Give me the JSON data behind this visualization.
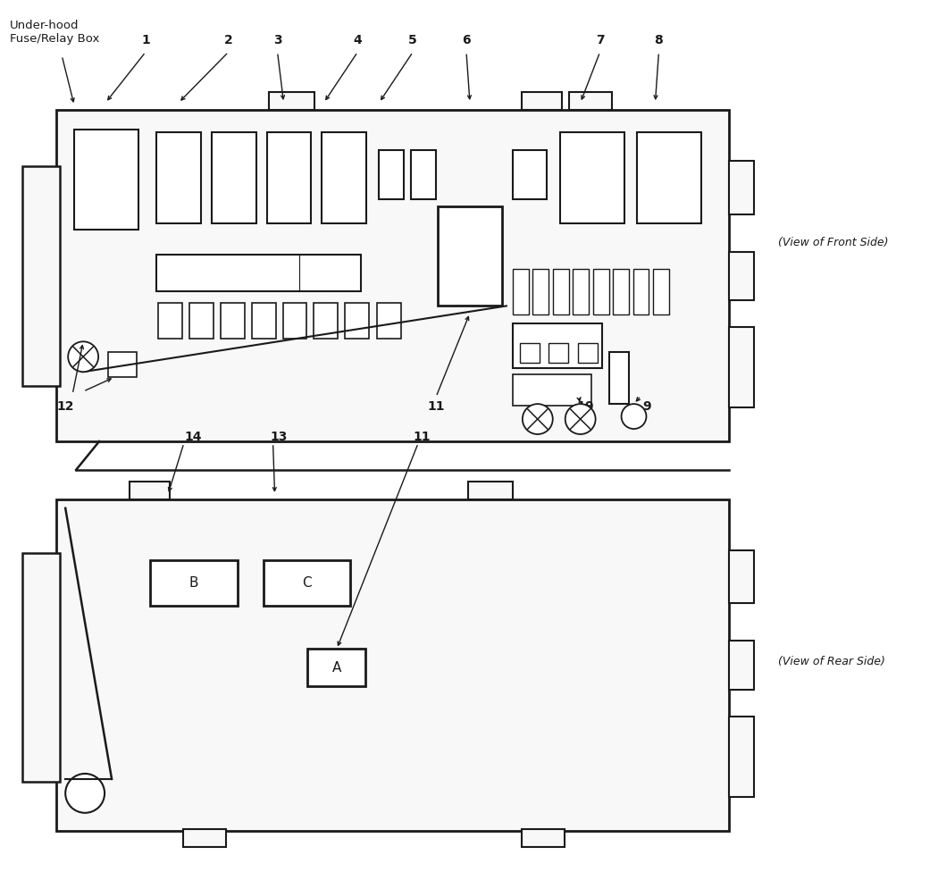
{
  "bg_color": "#ffffff",
  "line_color": "#1a1a1a",
  "fig_width": 10.5,
  "fig_height": 9.76,
  "label_under_hood": "Under-hood\nFuse/Relay Box",
  "label_front_side": "(View of Front Side)",
  "label_rear_side": "(View of Rear Side)"
}
